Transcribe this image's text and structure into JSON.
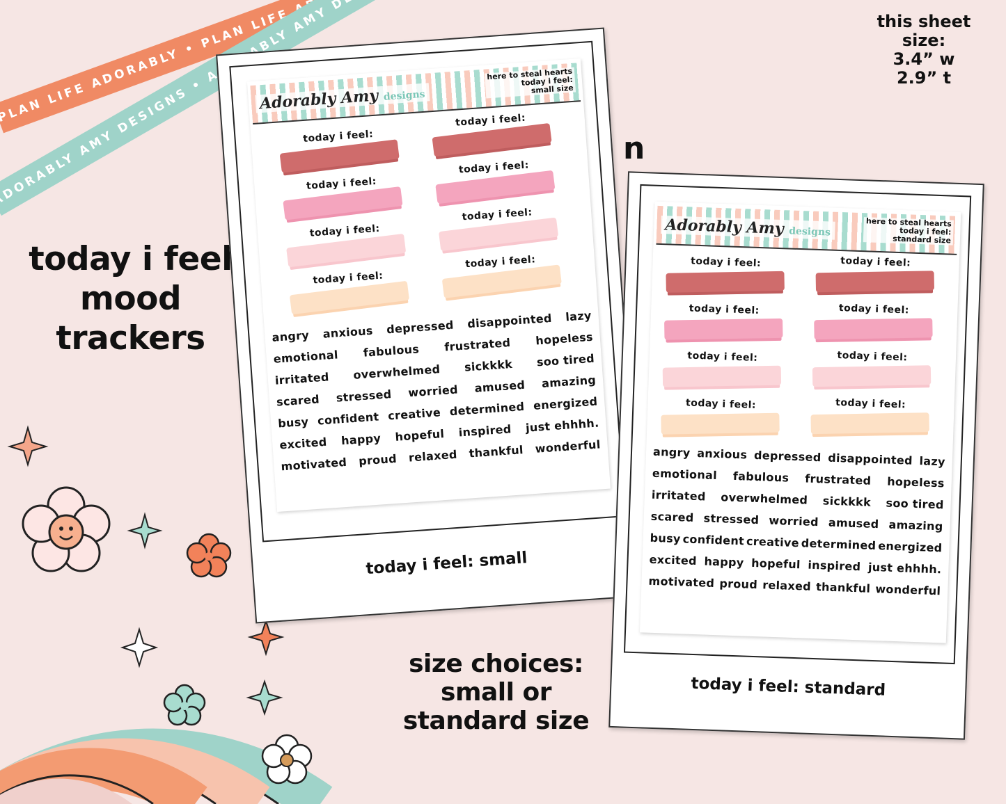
{
  "ribbons": {
    "orange_text": "PLAN LIFE ADORABLY • PLAN LIFE ADORABLY • PLAN LIFE ADORABLY •",
    "teal_text": "ADORABLY AMY DESIGNS • ADORABLY AMY DESIGNS • ADORABLY AMY DESIGNS •"
  },
  "sheet_size": {
    "line1": "this sheet size:",
    "line2": "3.4” w",
    "line3": "2.9” t"
  },
  "stray_char": "n",
  "title": {
    "line1": "today i feel",
    "line2": "mood",
    "line3": "trackers"
  },
  "size_choices": {
    "line1": "size choices:",
    "line2": "small or",
    "line3": "standard size"
  },
  "brand": {
    "name": "Adorably Amy",
    "sub": "designs"
  },
  "tracker_label": "today i feel:",
  "cards": [
    {
      "caption": "today i feel: small",
      "header": [
        "here to steal hearts",
        "today i feel:",
        "small size"
      ]
    },
    {
      "caption": "today i feel: standard",
      "header": [
        "here to steal hearts",
        "today i feel:",
        "standard size"
      ]
    }
  ],
  "words": [
    [
      "angry",
      "anxious",
      "depressed",
      "disappointed",
      "lazy"
    ],
    [
      "emotional",
      "fabulous",
      "frustrated",
      "hopeless"
    ],
    [
      "irritated",
      "overwhelmed",
      "sickkkk",
      "soo tired"
    ],
    [
      "scared",
      "stressed",
      "worried",
      "amused",
      "amazing"
    ],
    [
      "busy",
      "confident",
      "creative",
      "determined",
      "energized"
    ],
    [
      "excited",
      "happy",
      "hopeful",
      "inspired",
      "just ehhhh."
    ],
    [
      "motivated",
      "proud",
      "relaxed",
      "thankful",
      "wonderful"
    ]
  ],
  "colors": {
    "background": "#f6e6e4",
    "coral": "#f08a64",
    "teal": "#9fd3c9"
  }
}
